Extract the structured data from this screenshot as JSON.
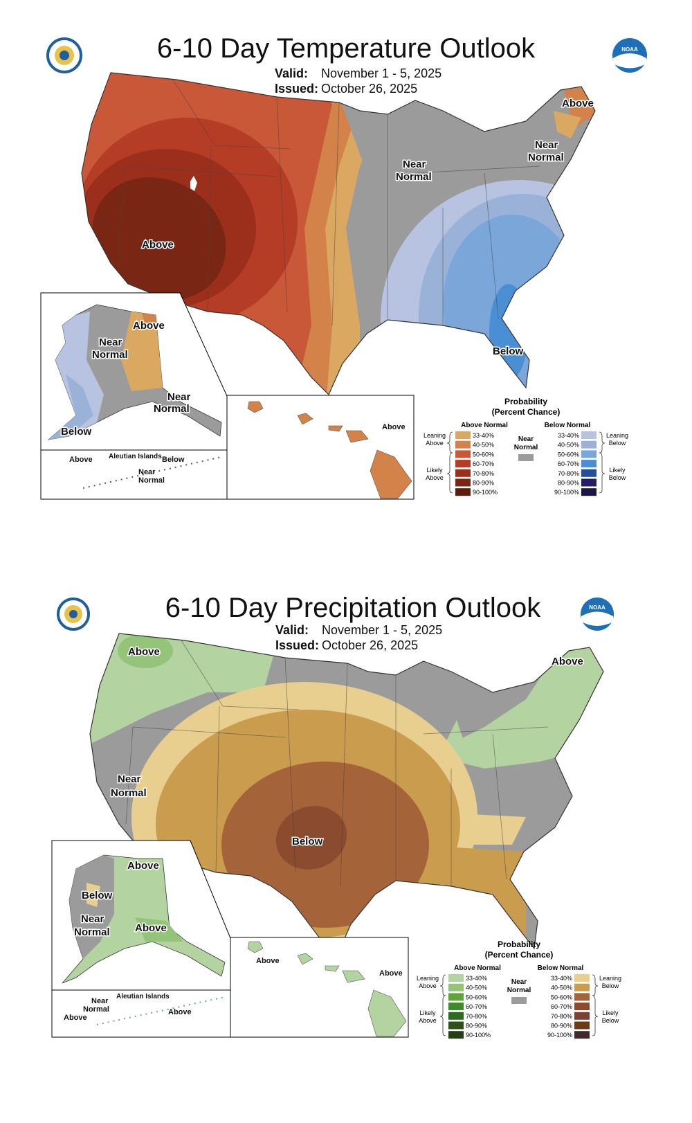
{
  "temperature": {
    "title": "6-10 Day Temperature Outlook",
    "valid_label": "Valid:",
    "valid": "November 1 - 5, 2025",
    "issued_label": "Issued:",
    "issued": "October 26, 2025",
    "map_labels": {
      "above_west": "Above",
      "near_normal_mw_1": "Near",
      "near_normal_mw_2": "Normal",
      "near_normal_ne_1": "Near",
      "near_normal_ne_2": "Normal",
      "above_maine": "Above",
      "below_se": "Below",
      "ak_above": "Above",
      "ak_near_1": "Near",
      "ak_near_2": "Normal",
      "ak_near_s_1": "Near",
      "ak_near_s_2": "Normal",
      "ak_below": "Below",
      "aleutian_title": "Aleutian Islands",
      "aleutian_above": "Above",
      "aleutian_below": "Below",
      "aleutian_near_1": "Near",
      "aleutian_near_2": "Normal",
      "hawaii_above": "Above"
    },
    "legend": {
      "title_1": "Probability",
      "title_2": "(Percent Chance)",
      "above_header": "Above Normal",
      "below_header": "Below Normal",
      "near_1": "Near",
      "near_2": "Normal",
      "leaning_above_1": "Leaning",
      "leaning_above_2": "Above",
      "likely_above_1": "Likely",
      "likely_above_2": "Above",
      "leaning_below_1": "Leaning",
      "leaning_below_2": "Below",
      "likely_below_1": "Likely",
      "likely_below_2": "Below",
      "ranges": [
        "33-40%",
        "40-50%",
        "50-60%",
        "60-70%",
        "70-80%",
        "80-90%",
        "90-100%"
      ],
      "above_colors": [
        "#dba862",
        "#d3824a",
        "#c85838",
        "#b53c25",
        "#9c2f1c",
        "#7a2614",
        "#5a1d0f"
      ],
      "below_colors": [
        "#b7c3e0",
        "#9bb2d8",
        "#7aa6d9",
        "#4a8ed3",
        "#22509a",
        "#251e66",
        "#1a1744"
      ],
      "near_color": "#9b9b9b"
    }
  },
  "precipitation": {
    "title": "6-10 Day Precipitation Outlook",
    "valid_label": "Valid:",
    "valid": "November 1 - 5, 2025",
    "issued_label": "Issued:",
    "issued": "October 26, 2025",
    "map_labels": {
      "above_nw": "Above",
      "above_ne": "Above",
      "near_west_1": "Near",
      "near_west_2": "Normal",
      "below_center": "Below",
      "ak_above_n": "Above",
      "ak_below": "Below",
      "ak_near_1": "Near",
      "ak_near_2": "Normal",
      "ak_above_s": "Above",
      "aleutian_title": "Aleutian Islands",
      "aleutian_near_1": "Near",
      "aleutian_near_2": "Normal",
      "aleutian_above_w": "Above",
      "aleutian_above_e": "Above",
      "hawaii_above_w": "Above",
      "hawaii_above_e": "Above"
    },
    "legend": {
      "title_1": "Probability",
      "title_2": "(Percent Chance)",
      "above_header": "Above Normal",
      "below_header": "Below Normal",
      "near_1": "Near",
      "near_2": "Normal",
      "leaning_above_1": "Leaning",
      "leaning_above_2": "Above",
      "likely_above_1": "Likely",
      "likely_above_2": "Above",
      "leaning_below_1": "Leaning",
      "leaning_below_2": "Below",
      "likely_below_1": "Likely",
      "likely_below_2": "Below",
      "ranges": [
        "33-40%",
        "40-50%",
        "50-60%",
        "60-70%",
        "70-80%",
        "80-90%",
        "90-100%"
      ],
      "above_colors": [
        "#b3d3a1",
        "#93c47a",
        "#5fa63a",
        "#3f8a2a",
        "#2f6a20",
        "#2d5119",
        "#263f14"
      ],
      "below_colors": [
        "#e8cf90",
        "#c99c4e",
        "#a5633a",
        "#8a4b2f",
        "#7d3f32",
        "#6a3b16",
        "#40292a"
      ],
      "near_color": "#9b9b9b"
    }
  },
  "logos": {
    "left": "Department of Commerce seal",
    "right": "NOAA"
  }
}
